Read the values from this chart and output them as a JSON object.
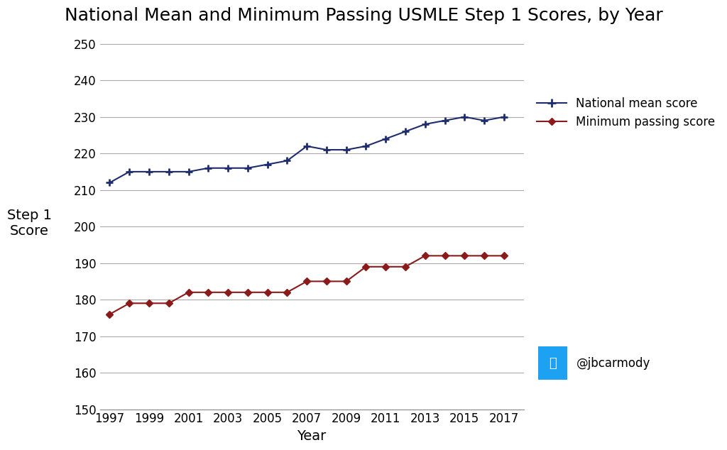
{
  "title": "National Mean and Minimum Passing USMLE Step 1 Scores, by Year",
  "xlabel": "Year",
  "ylabel": "Step 1\nScore",
  "years": [
    1997,
    1998,
    1999,
    2000,
    2001,
    2002,
    2003,
    2004,
    2005,
    2006,
    2007,
    2008,
    2009,
    2010,
    2011,
    2012,
    2013,
    2014,
    2015,
    2016,
    2017
  ],
  "national_mean": [
    212,
    215,
    215,
    215,
    215,
    216,
    216,
    216,
    217,
    218,
    222,
    221,
    221,
    222,
    224,
    226,
    228,
    229,
    230,
    229,
    230
  ],
  "min_passing": [
    176,
    179,
    179,
    179,
    182,
    182,
    182,
    182,
    182,
    182,
    185,
    185,
    185,
    189,
    189,
    189,
    192,
    192,
    192,
    192,
    192
  ],
  "mean_color": "#1f2d6e",
  "passing_color": "#8b1a1a",
  "background_color": "#ffffff",
  "ylim": [
    150,
    252
  ],
  "yticks": [
    150,
    160,
    170,
    180,
    190,
    200,
    210,
    220,
    230,
    240,
    250
  ],
  "xticks": [
    1997,
    1999,
    2001,
    2003,
    2005,
    2007,
    2009,
    2011,
    2013,
    2015,
    2017
  ],
  "legend_mean": "National mean score",
  "legend_passing": "Minimum passing score",
  "twitter_handle": "@jbcarmody",
  "twitter_color": "#1da1f2",
  "title_fontsize": 18,
  "axis_label_fontsize": 14,
  "tick_fontsize": 12,
  "legend_fontsize": 12
}
